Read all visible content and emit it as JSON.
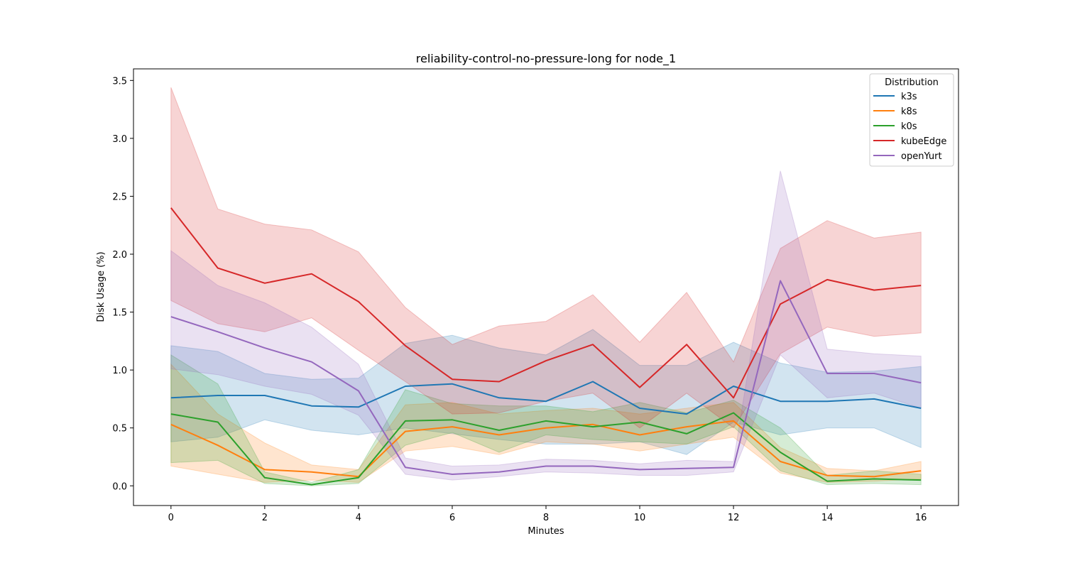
{
  "chart_data": {
    "type": "line",
    "title": "reliability-control-no-pressure-long for node_1",
    "xlabel": "Minutes",
    "ylabel": "Disk Usage (%)",
    "xlim": [
      -0.8,
      16.8
    ],
    "ylim": [
      -0.17,
      3.6
    ],
    "xticks": [
      0,
      2,
      4,
      6,
      8,
      10,
      12,
      14,
      16
    ],
    "yticks": [
      0.0,
      0.5,
      1.0,
      1.5,
      2.0,
      2.5,
      3.0,
      3.5
    ],
    "ytick_labels": [
      "0.0",
      "0.5",
      "1.0",
      "1.5",
      "2.0",
      "2.5",
      "3.0",
      "3.5"
    ],
    "grid": false,
    "legend": {
      "title": "Distribution",
      "placement": "top-right"
    },
    "x": [
      0,
      1,
      2,
      3,
      4,
      5,
      6,
      7,
      8,
      9,
      10,
      11,
      12,
      13,
      14,
      15,
      16
    ],
    "series": [
      {
        "name": "k3s",
        "color": "#1f77b4",
        "values": [
          0.76,
          0.78,
          0.78,
          0.69,
          0.68,
          0.86,
          0.88,
          0.76,
          0.73,
          0.9,
          0.67,
          0.62,
          0.86,
          0.73,
          0.73,
          0.75,
          0.67
        ],
        "lower": [
          0.38,
          0.42,
          0.57,
          0.48,
          0.44,
          0.5,
          0.45,
          0.4,
          0.36,
          0.36,
          0.38,
          0.27,
          0.55,
          0.44,
          0.5,
          0.5,
          0.33
        ],
        "upper": [
          1.21,
          1.16,
          0.97,
          0.92,
          0.93,
          1.23,
          1.3,
          1.19,
          1.13,
          1.35,
          1.04,
          1.04,
          1.24,
          1.06,
          0.98,
          0.99,
          1.03
        ]
      },
      {
        "name": "k8s",
        "color": "#ff7f0e",
        "values": [
          0.53,
          0.35,
          0.14,
          0.12,
          0.08,
          0.47,
          0.51,
          0.44,
          0.5,
          0.53,
          0.44,
          0.51,
          0.56,
          0.21,
          0.09,
          0.08,
          0.13
        ],
        "lower": [
          0.17,
          0.1,
          0.03,
          0.05,
          0.03,
          0.3,
          0.34,
          0.27,
          0.38,
          0.36,
          0.3,
          0.36,
          0.42,
          0.11,
          0.03,
          0.04,
          0.06
        ],
        "upper": [
          1.05,
          0.62,
          0.37,
          0.18,
          0.14,
          0.7,
          0.72,
          0.62,
          0.65,
          0.67,
          0.62,
          0.67,
          0.72,
          0.33,
          0.15,
          0.13,
          0.21
        ]
      },
      {
        "name": "k0s",
        "color": "#2ca02c",
        "values": [
          0.62,
          0.55,
          0.07,
          0.01,
          0.07,
          0.56,
          0.57,
          0.48,
          0.56,
          0.51,
          0.55,
          0.45,
          0.63,
          0.29,
          0.04,
          0.06,
          0.05
        ],
        "lower": [
          0.2,
          0.22,
          0.02,
          0.0,
          0.02,
          0.35,
          0.46,
          0.29,
          0.44,
          0.4,
          0.38,
          0.36,
          0.51,
          0.13,
          0.01,
          0.02,
          0.01
        ],
        "upper": [
          1.13,
          0.88,
          0.12,
          0.03,
          0.14,
          0.83,
          0.71,
          0.69,
          0.69,
          0.64,
          0.72,
          0.63,
          0.74,
          0.5,
          0.09,
          0.13,
          0.1
        ]
      },
      {
        "name": "kubeEdge",
        "color": "#d62728",
        "values": [
          2.4,
          1.88,
          1.75,
          1.83,
          1.59,
          1.21,
          0.92,
          0.9,
          1.08,
          1.22,
          0.85,
          1.22,
          0.76,
          1.57,
          1.78,
          1.69,
          1.73
        ],
        "lower": [
          1.6,
          1.4,
          1.33,
          1.45,
          1.17,
          0.9,
          0.62,
          0.63,
          0.73,
          0.8,
          0.5,
          0.8,
          0.5,
          1.14,
          1.37,
          1.29,
          1.32
        ],
        "upper": [
          3.44,
          2.39,
          2.26,
          2.21,
          2.02,
          1.54,
          1.22,
          1.38,
          1.42,
          1.65,
          1.24,
          1.67,
          1.07,
          2.05,
          2.29,
          2.14,
          2.19
        ]
      },
      {
        "name": "openYurt",
        "color": "#9467bd",
        "values": [
          1.46,
          1.33,
          1.19,
          1.07,
          0.82,
          0.16,
          0.1,
          0.12,
          0.17,
          0.17,
          0.14,
          0.15,
          0.16,
          1.77,
          0.97,
          0.97,
          0.89
        ],
        "lower": [
          1.01,
          0.96,
          0.86,
          0.79,
          0.61,
          0.1,
          0.05,
          0.08,
          0.12,
          0.11,
          0.09,
          0.09,
          0.12,
          1.13,
          0.76,
          0.8,
          0.67
        ],
        "upper": [
          2.03,
          1.73,
          1.58,
          1.37,
          1.05,
          0.24,
          0.17,
          0.18,
          0.23,
          0.22,
          0.19,
          0.22,
          0.21,
          2.72,
          1.18,
          1.14,
          1.12
        ]
      }
    ]
  }
}
